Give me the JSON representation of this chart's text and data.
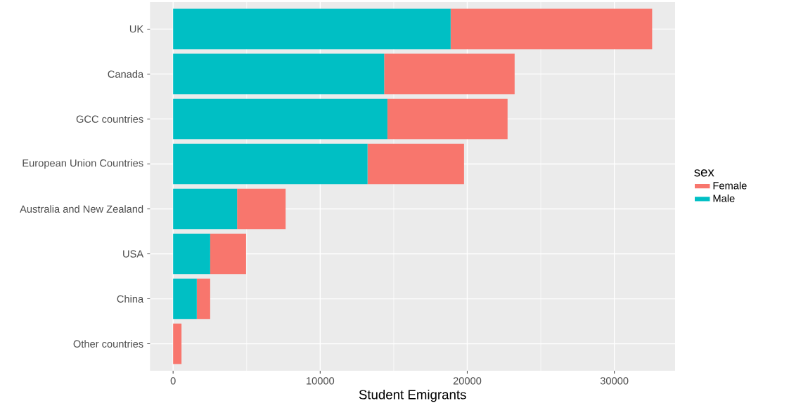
{
  "chart_data": {
    "type": "bar",
    "orientation": "horizontal",
    "stacked": true,
    "categories": [
      "UK",
      "Canada",
      "GCC countries",
      "European Union Countries",
      "Australia and New Zealand",
      "USA",
      "China",
      "Other countries"
    ],
    "series": [
      {
        "name": "Male",
        "color": "#00bfc4",
        "values": [
          18870,
          14350,
          14570,
          13220,
          4350,
          2520,
          1610,
          0
        ]
      },
      {
        "name": "Female",
        "color": "#f8766d",
        "values": [
          13700,
          8870,
          8170,
          6560,
          3300,
          2440,
          910,
          570
        ]
      }
    ],
    "xlabel": "Student Emigrants",
    "legend_title": "sex",
    "legend": "right",
    "xlim": [
      -1570,
      34130
    ],
    "xticks": [
      0,
      10000,
      20000,
      30000
    ],
    "grid": true
  }
}
